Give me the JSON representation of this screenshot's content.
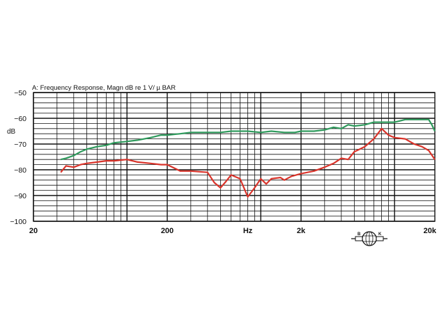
{
  "chart_data": {
    "type": "line",
    "title": "A:  Frequency  Response,  Magn  dB  re      1 V/ µ BAR",
    "xlabel": "Hz",
    "ylabel": "dB",
    "x_scale": "log",
    "xlim": [
      20,
      20000
    ],
    "ylim": [
      -100,
      -50
    ],
    "grid": true,
    "x_tick_labels": [
      {
        "value": 20,
        "label": "20"
      },
      {
        "value": 200,
        "label": "200"
      },
      {
        "value": 800,
        "label": "Hz"
      },
      {
        "value": 2000,
        "label": "2k"
      },
      {
        "value": 20000,
        "label": "20k"
      }
    ],
    "y_ticks": [
      -50,
      -60,
      -70,
      -80,
      -90,
      -100
    ],
    "y_tick_labels": [
      "−50",
      "−60",
      "−70",
      "−80",
      "−90",
      "−100"
    ],
    "series": [
      {
        "color": "#2e9a5c",
        "x": [
          32,
          35,
          40,
          45,
          50,
          60,
          70,
          80,
          100,
          120,
          150,
          180,
          200,
          250,
          300,
          400,
          500,
          600,
          700,
          800,
          1000,
          1200,
          1500,
          1800,
          2000,
          2500,
          3000,
          3500,
          4000,
          4500,
          5000,
          6000,
          7000,
          8000,
          9000,
          10000,
          11000,
          12000,
          14000,
          16000,
          18000,
          19000,
          20000
        ],
        "y": [
          -76,
          -75.5,
          -74.5,
          -73,
          -72,
          -71,
          -70.5,
          -69.5,
          -69,
          -68.5,
          -67.5,
          -66.5,
          -66.5,
          -66,
          -65.5,
          -65.5,
          -65.5,
          -65,
          -65,
          -65,
          -65.5,
          -65,
          -65.5,
          -65.5,
          -65,
          -65,
          -64.5,
          -63.5,
          -64,
          -62.5,
          -63,
          -62.5,
          -61.5,
          -61.5,
          -61.5,
          -61.5,
          -61,
          -60.5,
          -60.5,
          -60.5,
          -60.5,
          -62.5,
          -65
        ]
      },
      {
        "color": "#d9342b",
        "x": [
          32,
          35,
          40,
          45,
          50,
          60,
          70,
          80,
          100,
          120,
          150,
          180,
          200,
          250,
          300,
          400,
          450,
          500,
          550,
          600,
          700,
          800,
          900,
          1000,
          1100,
          1200,
          1400,
          1500,
          1700,
          2000,
          2500,
          3000,
          3500,
          4000,
          4500,
          5000,
          6000,
          7000,
          8000,
          9000,
          10000,
          12000,
          14000,
          16000,
          18000,
          20000
        ],
        "y": [
          -81,
          -78.5,
          -79,
          -78,
          -77.5,
          -77,
          -76.5,
          -76.5,
          -76,
          -77,
          -77.5,
          -78,
          -78,
          -80.5,
          -80.5,
          -81,
          -85,
          -87,
          -84.5,
          -82,
          -83.5,
          -90.5,
          -87,
          -83.5,
          -85.5,
          -83.5,
          -83,
          -84,
          -82.5,
          -81.5,
          -80.5,
          -79,
          -77.5,
          -75.5,
          -76,
          -73,
          -71,
          -68,
          -64,
          -66.5,
          -67.5,
          -68,
          -70,
          -71,
          -72.5,
          -76
        ]
      }
    ]
  },
  "logo": {
    "letters": [
      "B",
      "K"
    ]
  }
}
